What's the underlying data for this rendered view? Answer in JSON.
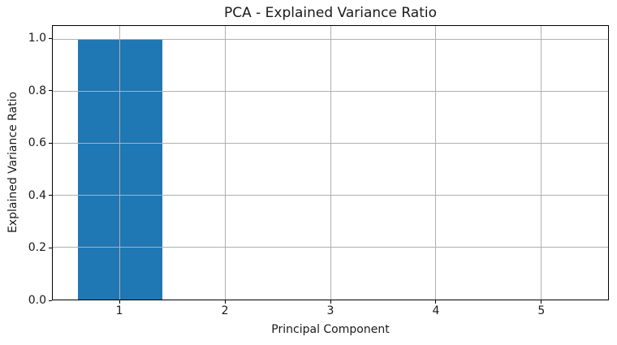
{
  "figure": {
    "background": "#ffffff",
    "spine_color": "#000000",
    "text_color": "#1a1a1a"
  },
  "chart_data": {
    "type": "bar",
    "title": "PCA - Explained Variance Ratio",
    "xlabel": "Principal Component",
    "ylabel": "Explained Variance Ratio",
    "categories": [
      1,
      2,
      3,
      4,
      5
    ],
    "values": [
      1.0,
      0.0,
      0.0,
      0.0,
      0.0
    ],
    "x_ticks": [
      1,
      2,
      3,
      4,
      5
    ],
    "x_tick_labels": [
      "1",
      "2",
      "3",
      "4",
      "5"
    ],
    "y_ticks": [
      0.0,
      0.2,
      0.4,
      0.6,
      0.8,
      1.0
    ],
    "y_tick_labels": [
      "0.0",
      "0.2",
      "0.4",
      "0.6",
      "0.8",
      "1.0"
    ],
    "xlim": [
      0.36,
      5.64
    ],
    "ylim": [
      0,
      1.05
    ],
    "bar_width": 0.8,
    "bar_color": "#1f77b4",
    "grid": true,
    "grid_color": "#b0b0b0",
    "grid_above_bars": true,
    "legend": "none"
  }
}
